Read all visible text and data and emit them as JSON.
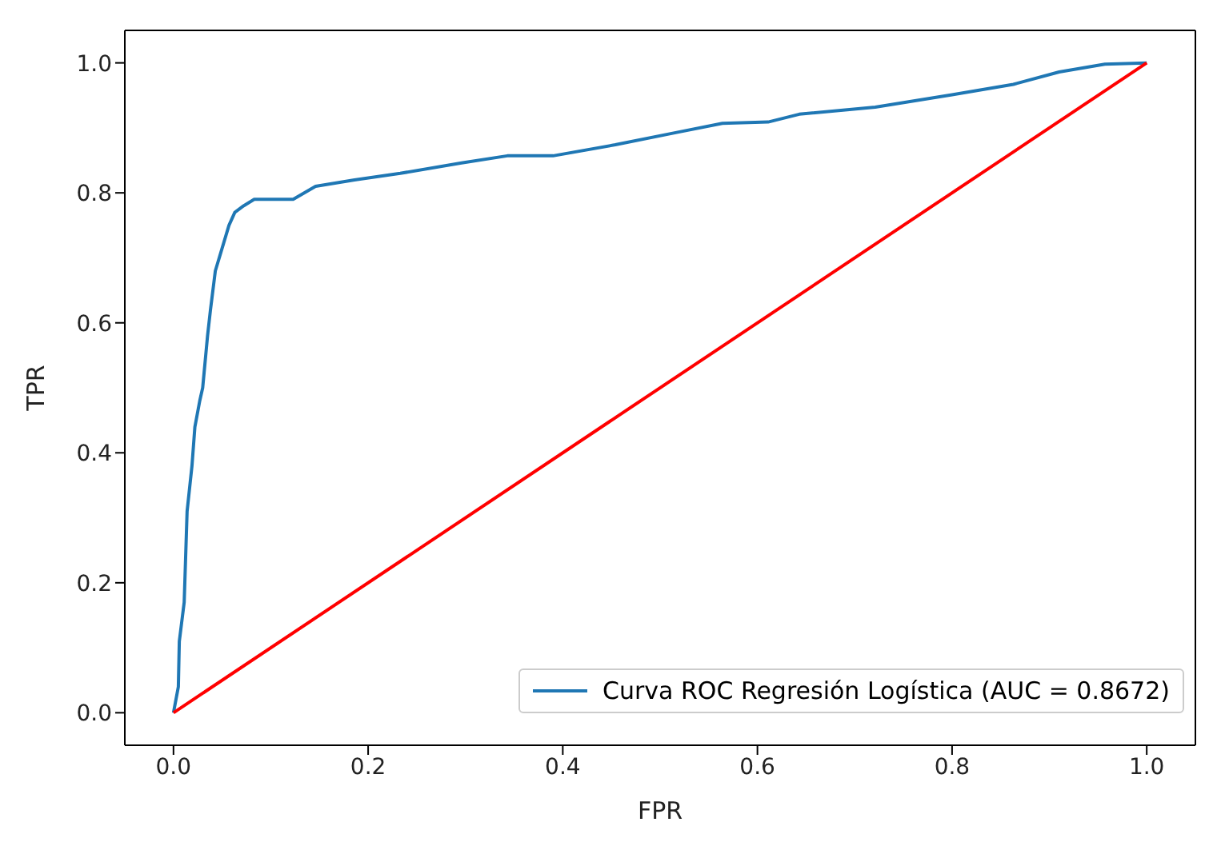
{
  "chart_data": {
    "type": "line",
    "xlabel": "FPR",
    "ylabel": "TPR",
    "xlim": [
      -0.05,
      1.05
    ],
    "ylim": [
      -0.05,
      1.05
    ],
    "xticks": [
      {
        "value": 0,
        "label": "0.0"
      },
      {
        "value": 0.2,
        "label": "0.2"
      },
      {
        "value": 0.4,
        "label": "0.4"
      },
      {
        "value": 0.6,
        "label": "0.6"
      },
      {
        "value": 0.8,
        "label": "0.8"
      },
      {
        "value": 1,
        "label": "1.0"
      }
    ],
    "yticks": [
      {
        "value": 0,
        "label": "0.0"
      },
      {
        "value": 0.2,
        "label": "0.2"
      },
      {
        "value": 0.4,
        "label": "0.4"
      },
      {
        "value": 0.6,
        "label": "0.6"
      },
      {
        "value": 0.8,
        "label": "0.8"
      },
      {
        "value": 1,
        "label": "1.0"
      }
    ],
    "legend": "bottom right",
    "marker": "none",
    "line_style": "solid",
    "series": [
      {
        "name": "Curva ROC Regresión Logística (AUC = 0.8672)",
        "color": "#1f77b4",
        "x": [
          0,
          0.002,
          0.005,
          0.006,
          0.011,
          0.014,
          0.019,
          0.022,
          0.027,
          0.03,
          0.035,
          0.038,
          0.043,
          0.049,
          0.057,
          0.063,
          0.072,
          0.083,
          0.123,
          0.146,
          0.186,
          0.233,
          0.296,
          0.343,
          0.39,
          0.454,
          0.517,
          0.564,
          0.611,
          0.643,
          0.721,
          0.8,
          0.863,
          0.91,
          0.957,
          1
        ],
        "values": [
          0,
          0.016,
          0.04,
          0.11,
          0.17,
          0.31,
          0.38,
          0.44,
          0.48,
          0.5,
          0.58,
          0.62,
          0.68,
          0.71,
          0.75,
          0.77,
          0.78,
          0.79,
          0.79,
          0.81,
          0.82,
          0.83,
          0.846,
          0.857,
          0.857,
          0.874,
          0.893,
          0.907,
          0.909,
          0.921,
          0.932,
          0.951,
          0.967,
          0.986,
          0.998,
          1
        ]
      },
      {
        "color": "#ff0000",
        "x": [
          0,
          1
        ],
        "values": [
          0,
          1
        ]
      }
    ]
  }
}
